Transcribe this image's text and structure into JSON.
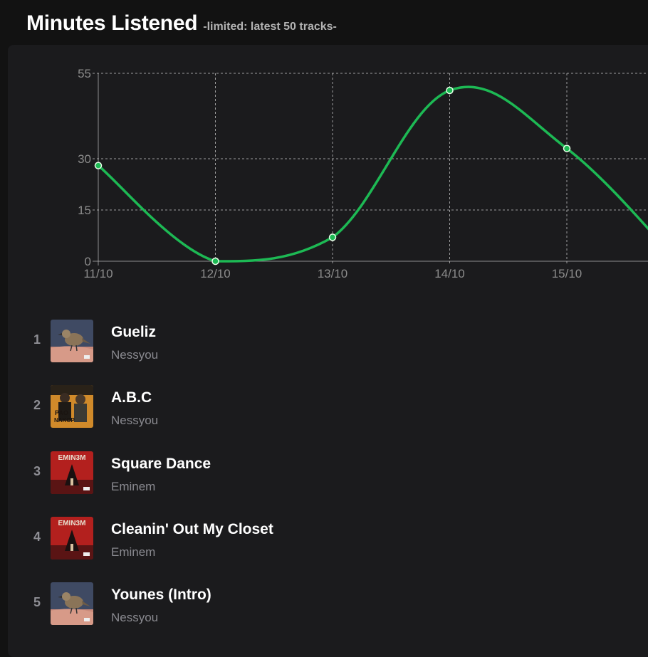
{
  "header": {
    "title": "Minutes Listened",
    "subtitle": "-limited: latest 50 tracks-"
  },
  "chart_data": {
    "type": "line",
    "x": [
      "11/10",
      "12/10",
      "13/10",
      "14/10",
      "15/10"
    ],
    "series": [
      {
        "values": [
          28,
          0,
          7,
          50,
          33
        ]
      }
    ],
    "y_ticks": [
      0,
      15,
      30,
      55
    ],
    "ylim": [
      0,
      55
    ],
    "xlabel": "",
    "ylabel": "",
    "grid": true,
    "line_color": "#1db954"
  },
  "tracks": [
    {
      "rank": "1",
      "title": "Gueliz",
      "artist": "Nessyou",
      "cover": "bird"
    },
    {
      "rank": "2",
      "title": "A.B.C",
      "artist": "Nessyou",
      "cover": "duo"
    },
    {
      "rank": "3",
      "title": "Square Dance",
      "artist": "Eminem",
      "cover": "eminem"
    },
    {
      "rank": "4",
      "title": "Cleanin' Out My Closet",
      "artist": "Eminem",
      "cover": "eminem"
    },
    {
      "rank": "5",
      "title": "Younes (Intro)",
      "artist": "Nessyou",
      "cover": "bird"
    }
  ]
}
